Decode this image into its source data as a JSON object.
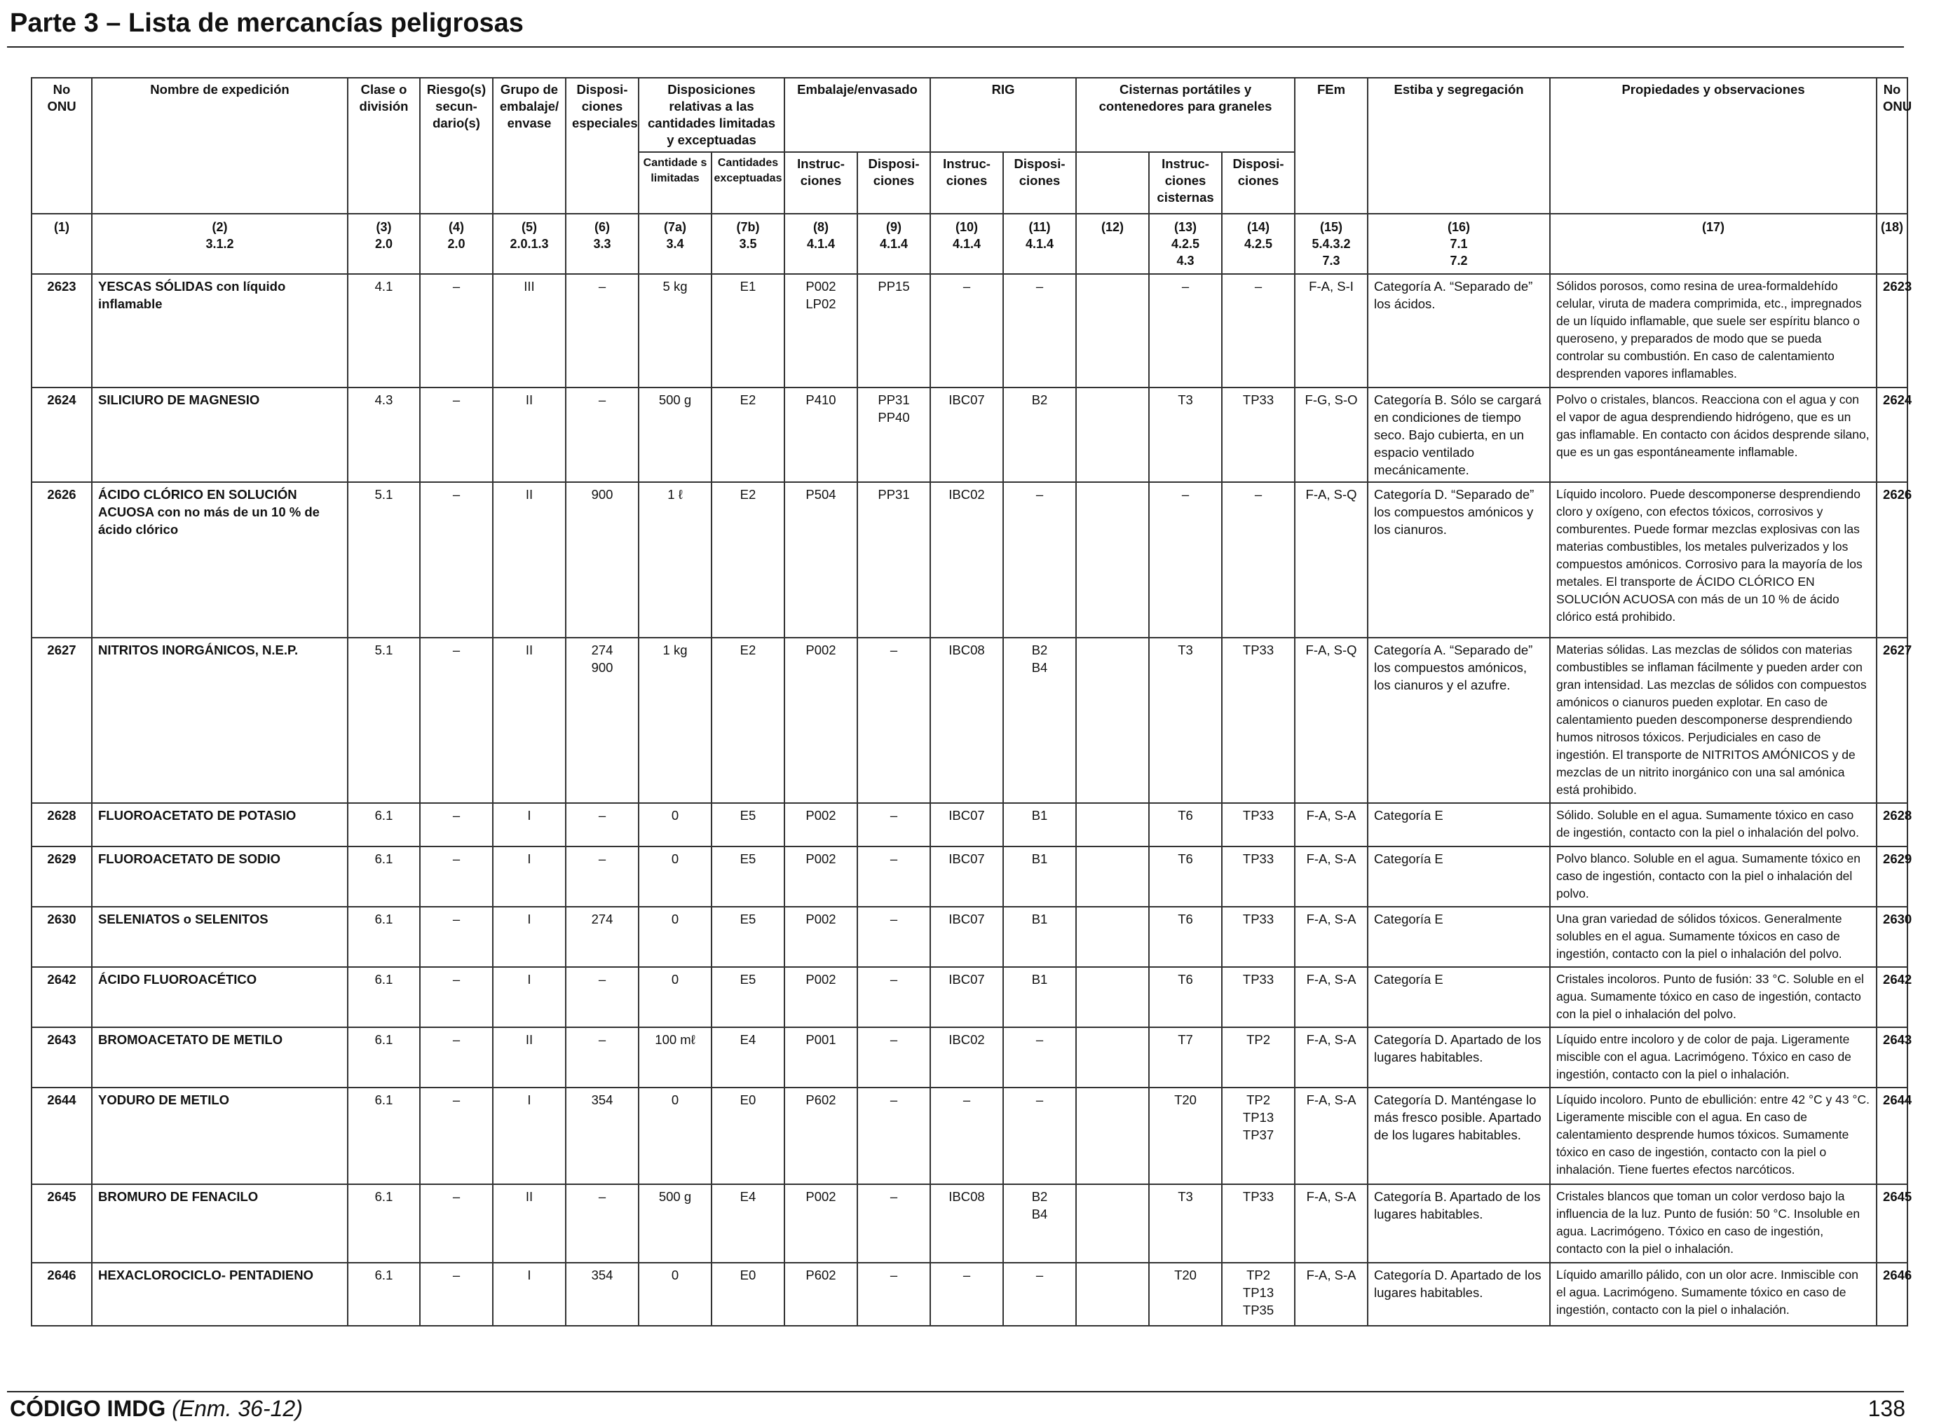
{
  "header": {
    "title": "Parte 3 – Lista de mercancías peligrosas"
  },
  "table": {
    "headers": {
      "un_no": "No ONU",
      "name": "Nombre de expedición",
      "class": "Clase o división",
      "sub_risk": "Riesgo(s) secun- dario(s)",
      "pack_group": "Grupo de embalaje/ envase",
      "special": "Disposi- ciones especiales",
      "limited_group": "Disposiciones relativas a las cantidades limitadas y exceptuadas",
      "limited_qty": "Cantidade s limitadas",
      "excepted_qty": "Cantidades exceptuadas",
      "packing_group": "Embalaje/envasado",
      "pack_instr": "Instruc- ciones",
      "pack_prov": "Disposi- ciones",
      "ibc_group": "RIG",
      "ibc_instr": "Instruc- ciones",
      "ibc_prov": "Disposi- ciones",
      "tank_group": "Cisternas portátiles y contenedores para graneles",
      "tank_instr": "Instruc- ciones cisternas",
      "tank_prov": "Disposi- ciones",
      "ems": "FEm",
      "stowage": "Estiba y segregación",
      "properties": "Propiedades y observaciones",
      "un_no_right": "No ONU"
    },
    "ref_row": [
      [
        "(1)",
        ""
      ],
      [
        "(2)",
        "3.1.2"
      ],
      [
        "(3)",
        "2.0"
      ],
      [
        "(4)",
        "2.0"
      ],
      [
        "(5)",
        "2.0.1.3"
      ],
      [
        "(6)",
        "3.3"
      ],
      [
        "(7a)",
        "3.4"
      ],
      [
        "(7b)",
        "3.5"
      ],
      [
        "(8)",
        "4.1.4"
      ],
      [
        "(9)",
        "4.1.4"
      ],
      [
        "(10)",
        "4.1.4"
      ],
      [
        "(11)",
        "4.1.4"
      ],
      [
        "(12)",
        ""
      ],
      [
        "(13)",
        "4.2.5\n4.3"
      ],
      [
        "(14)",
        "4.2.5"
      ],
      [
        "(15)",
        "5.4.3.2\n7.3"
      ],
      [
        "(16)",
        "7.1\n7.2"
      ],
      [
        "(17)",
        ""
      ],
      [
        "(18)",
        ""
      ]
    ],
    "rows": [
      {
        "un": "2623",
        "name": "YESCAS SÓLIDAS con líquido inflamable",
        "class": "4.1",
        "sub": "–",
        "pg": "III",
        "sp": "–",
        "lq": "5 kg",
        "eq": "E1",
        "pi": "P002\nLP02",
        "pp": "PP15",
        "ibc": "–",
        "ibcp": "–",
        "c12": "",
        "tank": "–",
        "tankp": "–",
        "ems": "F-A, S-I",
        "stow": "Categoría A. “Separado de” los ácidos.",
        "props": "Sólidos porosos, como resina de urea-formaldehído celular, viruta de madera comprimida, etc., impregnados de un líquido inflamable, que suele ser espíritu blanco o queroseno, y preparados de modo que se pueda controlar su combustión. En caso de calentamiento desprenden vapores inflamables.",
        "un2": "2623"
      },
      {
        "un": "2624",
        "name": "SILICIURO DE MAGNESIO",
        "class": "4.3",
        "sub": "–",
        "pg": "II",
        "sp": "–",
        "lq": "500 g",
        "eq": "E2",
        "pi": "P410",
        "pp": "PP31\nPP40",
        "ibc": "IBC07",
        "ibcp": "B2",
        "c12": "",
        "tank": "T3",
        "tankp": "TP33",
        "ems": "F-G, S-O",
        "stow": "Categoría B. Sólo se cargará en condiciones de tiempo seco. Bajo cubierta, en un espacio ventilado mecánicamente.",
        "props": "Polvo o cristales, blancos. Reacciona con el agua y con el vapor de agua desprendiendo hidrógeno, que es un gas inflamable. En contacto con ácidos desprende silano, que es un gas espontáneamente inflamable.",
        "un2": "2624"
      },
      {
        "un": "2626",
        "name": "ÁCIDO CLÓRICO EN SOLUCIÓN ACUOSA con no más de un 10 % de ácido clórico",
        "class": "5.1",
        "sub": "–",
        "pg": "II",
        "sp": "900",
        "lq": "1 ℓ",
        "eq": "E2",
        "pi": "P504",
        "pp": "PP31",
        "ibc": "IBC02",
        "ibcp": "–",
        "c12": "",
        "tank": "–",
        "tankp": "–",
        "ems": "F-A, S-Q",
        "stow": "Categoría D. “Separado de” los compuestos amónicos y los cianuros.",
        "props": "Líquido incoloro. Puede descomponerse desprendiendo cloro y oxígeno, con efectos tóxicos, corrosivos y comburentes. Puede formar mezclas explosivas con las materias combustibles, los metales pulverizados y los compuestos amónicos. Corrosivo para la mayoría de los metales. El transporte de ÁCIDO CLÓRICO EN SOLUCIÓN ACUOSA con más de un 10 % de ácido clórico está prohibido.",
        "un2": "2626"
      },
      {
        "un": "2627",
        "name": "NITRITOS INORGÁNICOS, N.E.P.",
        "class": "5.1",
        "sub": "–",
        "pg": "II",
        "sp": "274\n900",
        "lq": "1 kg",
        "eq": "E2",
        "pi": "P002",
        "pp": "–",
        "ibc": "IBC08",
        "ibcp": "B2\nB4",
        "c12": "",
        "tank": "T3",
        "tankp": "TP33",
        "ems": "F-A, S-Q",
        "stow": "Categoría A. “Separado de” los compuestos amónicos, los cianuros y el azufre.",
        "props": "Materias sólidas. Las mezclas de sólidos con materias combustibles se inflaman fácilmente y pueden arder con gran intensidad. Las mezclas de sólidos con compuestos amónicos o cianuros pueden explotar. En caso de calentamiento pueden descomponerse desprendiendo humos nitrosos tóxicos. Perjudiciales en caso de ingestión. El transporte de NITRITOS AMÓNICOS y de mezclas de un nitrito inorgánico con una sal amónica está prohibido.",
        "un2": "2627"
      },
      {
        "un": "2628",
        "name": "FLUOROACETATO DE POTASIO",
        "class": "6.1",
        "sub": "–",
        "pg": "I",
        "sp": "–",
        "lq": "0",
        "eq": "E5",
        "pi": "P002",
        "pp": "–",
        "ibc": "IBC07",
        "ibcp": "B1",
        "c12": "",
        "tank": "T6",
        "tankp": "TP33",
        "ems": "F-A, S-A",
        "stow": "Categoría E",
        "props": "Sólido. Soluble en el agua. Sumamente tóxico en caso de ingestión, contacto con la piel o inhalación del polvo.",
        "un2": "2628"
      },
      {
        "un": "2629",
        "name": "FLUOROACETATO DE SODIO",
        "class": "6.1",
        "sub": "–",
        "pg": "I",
        "sp": "–",
        "lq": "0",
        "eq": "E5",
        "pi": "P002",
        "pp": "–",
        "ibc": "IBC07",
        "ibcp": "B1",
        "c12": "",
        "tank": "T6",
        "tankp": "TP33",
        "ems": "F-A, S-A",
        "stow": "Categoría E",
        "props": "Polvo blanco. Soluble en el agua. Sumamente tóxico en caso de ingestión, contacto con la piel o inhalación del polvo.",
        "un2": "2629"
      },
      {
        "un": "2630",
        "name": "SELENIATOS o SELENITOS",
        "class": "6.1",
        "sub": "–",
        "pg": "I",
        "sp": "274",
        "lq": "0",
        "eq": "E5",
        "pi": "P002",
        "pp": "–",
        "ibc": "IBC07",
        "ibcp": "B1",
        "c12": "",
        "tank": "T6",
        "tankp": "TP33",
        "ems": "F-A, S-A",
        "stow": "Categoría E",
        "props": "Una gran variedad de sólidos tóxicos. Generalmente solubles en el agua. Sumamente tóxicos en caso de ingestión, contacto con la piel o inhalación del polvo.",
        "un2": "2630"
      },
      {
        "un": "2642",
        "name": "ÁCIDO FLUOROACÉTICO",
        "class": "6.1",
        "sub": "–",
        "pg": "I",
        "sp": "–",
        "lq": "0",
        "eq": "E5",
        "pi": "P002",
        "pp": "–",
        "ibc": "IBC07",
        "ibcp": "B1",
        "c12": "",
        "tank": "T6",
        "tankp": "TP33",
        "ems": "F-A, S-A",
        "stow": "Categoría E",
        "props": "Cristales incoloros. Punto de fusión: 33 °C. Soluble en el agua. Sumamente tóxico en caso de ingestión, contacto con la piel o inhalación del polvo.",
        "un2": "2642"
      },
      {
        "un": "2643",
        "name": "BROMOACETATO DE METILO",
        "class": "6.1",
        "sub": "–",
        "pg": "II",
        "sp": "–",
        "lq": "100 mℓ",
        "eq": "E4",
        "pi": "P001",
        "pp": "–",
        "ibc": "IBC02",
        "ibcp": "–",
        "c12": "",
        "tank": "T7",
        "tankp": "TP2",
        "ems": "F-A, S-A",
        "stow": "Categoría D. Apartado de los lugares habitables.",
        "props": "Líquido entre incoloro y de color de paja. Ligeramente miscible con el agua. Lacrimógeno. Tóxico en caso de ingestión, contacto con la piel o inhalación.",
        "un2": "2643"
      },
      {
        "un": "2644",
        "name": "YODURO DE METILO",
        "class": "6.1",
        "sub": "–",
        "pg": "I",
        "sp": "354",
        "lq": "0",
        "eq": "E0",
        "pi": "P602",
        "pp": "–",
        "ibc": "–",
        "ibcp": "–",
        "c12": "",
        "tank": "T20",
        "tankp": "TP2\nTP13\nTP37",
        "ems": "F-A, S-A",
        "stow": "Categoría D. Manténgase lo más fresco posible. Apartado de los lugares habitables.",
        "props": "Líquido incoloro. Punto de ebullición: entre 42 °C y 43 °C. Ligeramente miscible con el agua. En caso de calentamiento desprende humos tóxicos. Sumamente tóxico en caso de ingestión, contacto con la piel o inhalación. Tiene fuertes efectos narcóticos.",
        "un2": "2644"
      },
      {
        "un": "2645",
        "name": "BROMURO DE FENACILO",
        "class": "6.1",
        "sub": "–",
        "pg": "II",
        "sp": "–",
        "lq": "500 g",
        "eq": "E4",
        "pi": "P002",
        "pp": "–",
        "ibc": "IBC08",
        "ibcp": "B2\nB4",
        "c12": "",
        "tank": "T3",
        "tankp": "TP33",
        "ems": "F-A, S-A",
        "stow": "Categoría B. Apartado de los lugares habitables.",
        "props": "Cristales blancos que toman un color verdoso bajo la influencia de la luz. Punto de fusión: 50 °C. Insoluble en agua. Lacrimógeno. Tóxico en caso de ingestión, contacto con la piel o inhalación.",
        "un2": "2645"
      },
      {
        "un": "2646",
        "name": "HEXACLOROCICLO- PENTADIENO",
        "class": "6.1",
        "sub": "–",
        "pg": "I",
        "sp": "354",
        "lq": "0",
        "eq": "E0",
        "pi": "P602",
        "pp": "–",
        "ibc": "–",
        "ibcp": "–",
        "c12": "",
        "tank": "T20",
        "tankp": "TP2\nTP13\nTP35",
        "ems": "F-A, S-A",
        "stow": "Categoría D. Apartado de los lugares habitables.",
        "props": "Líquido amarillo pálido, con un olor acre. Inmiscible con el agua. Lacrimógeno. Sumamente tóxico en caso de ingestión, contacto con la piel o inhalación.",
        "un2": "2646"
      }
    ]
  },
  "footer": {
    "code": "CÓDIGO IMDG",
    "amendment": "(Enm. 36-12)",
    "page": "138"
  }
}
